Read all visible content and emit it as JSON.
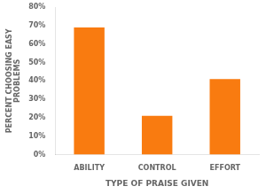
{
  "chart_data": {
    "type": "bar",
    "categories": [
      "ABILITY",
      "CONTROL",
      "EFFORT"
    ],
    "values": [
      69,
      21,
      41
    ],
    "color": "#F97B10",
    "xlabel": "TYPE OF PRAISE GIVEN",
    "ylabel": "PERCENT CHOOSING EASY\nPROBLEMS",
    "ylim": [
      0,
      80
    ],
    "yticks": [
      {
        "value": 0,
        "label": "0%"
      },
      {
        "value": 10,
        "label": "10%"
      },
      {
        "value": 20,
        "label": "20%"
      },
      {
        "value": 30,
        "label": "30%"
      },
      {
        "value": 40,
        "label": "40%"
      },
      {
        "value": 50,
        "label": "50%"
      },
      {
        "value": 60,
        "label": "60%"
      },
      {
        "value": 70,
        "label": "70%"
      },
      {
        "value": 80,
        "label": "80%"
      }
    ],
    "grid": false
  }
}
